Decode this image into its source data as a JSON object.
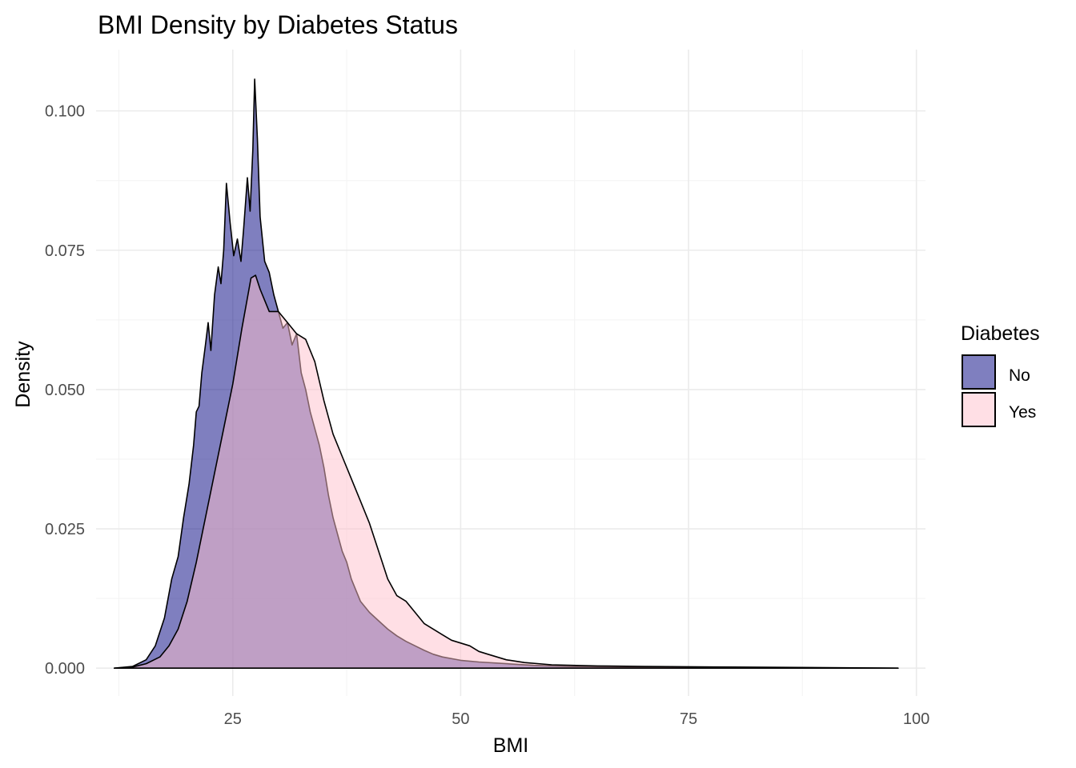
{
  "chart_data": {
    "type": "area",
    "title": "BMI Density by Diabetes Status",
    "xlabel": "BMI",
    "ylabel": "Density",
    "xlim": [
      10,
      101
    ],
    "ylim": [
      -0.005,
      0.111
    ],
    "x_ticks": [
      25,
      50,
      75,
      100
    ],
    "x_tick_labels": [
      "25",
      "50",
      "75",
      "100"
    ],
    "y_ticks": [
      0,
      0.025,
      0.05,
      0.075,
      0.1
    ],
    "y_tick_labels": [
      "0.000",
      "0.025",
      "0.050",
      "0.075",
      "0.100"
    ],
    "grid": true,
    "legend": {
      "title": "Diabetes",
      "placement": "right"
    },
    "series": [
      {
        "name": "No",
        "color": "#00007f",
        "alpha": 0.5,
        "points": [
          [
            12,
            0
          ],
          [
            14,
            0.0003
          ],
          [
            15.5,
            0.0015
          ],
          [
            16.5,
            0.004
          ],
          [
            17.5,
            0.009
          ],
          [
            18.3,
            0.016
          ],
          [
            19,
            0.02
          ],
          [
            19.6,
            0.027
          ],
          [
            20.2,
            0.033
          ],
          [
            20.7,
            0.04
          ],
          [
            21,
            0.046
          ],
          [
            21.3,
            0.047
          ],
          [
            21.6,
            0.053
          ],
          [
            22,
            0.058
          ],
          [
            22.3,
            0.062
          ],
          [
            22.6,
            0.057
          ],
          [
            23,
            0.067
          ],
          [
            23.4,
            0.072
          ],
          [
            23.7,
            0.069
          ],
          [
            24,
            0.075
          ],
          [
            24.3,
            0.087
          ],
          [
            24.7,
            0.08
          ],
          [
            25.1,
            0.074
          ],
          [
            25.5,
            0.077
          ],
          [
            25.9,
            0.073
          ],
          [
            26.2,
            0.079
          ],
          [
            26.6,
            0.088
          ],
          [
            26.9,
            0.082
          ],
          [
            27.2,
            0.093
          ],
          [
            27.4,
            0.1057
          ],
          [
            27.7,
            0.095
          ],
          [
            28,
            0.081
          ],
          [
            28.5,
            0.073
          ],
          [
            29,
            0.071
          ],
          [
            29.5,
            0.067
          ],
          [
            30,
            0.064
          ],
          [
            30.5,
            0.061
          ],
          [
            31,
            0.062
          ],
          [
            31.5,
            0.058
          ],
          [
            32,
            0.06
          ],
          [
            32.5,
            0.053
          ],
          [
            33,
            0.05
          ],
          [
            33.5,
            0.046
          ],
          [
            34,
            0.043
          ],
          [
            34.5,
            0.04
          ],
          [
            35,
            0.036
          ],
          [
            35.5,
            0.031
          ],
          [
            36,
            0.027
          ],
          [
            36.5,
            0.024
          ],
          [
            37,
            0.021
          ],
          [
            37.5,
            0.019
          ],
          [
            38,
            0.016
          ],
          [
            38.5,
            0.014
          ],
          [
            39,
            0.012
          ],
          [
            40,
            0.01
          ],
          [
            41,
            0.0085
          ],
          [
            42,
            0.007
          ],
          [
            43,
            0.0058
          ],
          [
            44,
            0.0048
          ],
          [
            45,
            0.004
          ],
          [
            46,
            0.0032
          ],
          [
            47,
            0.0025
          ],
          [
            48,
            0.002
          ],
          [
            50,
            0.0014
          ],
          [
            52,
            0.0011
          ],
          [
            55,
            0.0008
          ],
          [
            58,
            0.0005
          ],
          [
            62,
            0.0003
          ],
          [
            70,
            0.0002
          ],
          [
            80,
            0.0001
          ],
          [
            98,
            0
          ]
        ]
      },
      {
        "name": "Yes",
        "color": "#ffc0cb",
        "alpha": 0.5,
        "points": [
          [
            12,
            0
          ],
          [
            14,
            0.0002
          ],
          [
            15.5,
            0.0008
          ],
          [
            17,
            0.002
          ],
          [
            18,
            0.004
          ],
          [
            19,
            0.007
          ],
          [
            20,
            0.012
          ],
          [
            21,
            0.019
          ],
          [
            22,
            0.027
          ],
          [
            23,
            0.035
          ],
          [
            24,
            0.043
          ],
          [
            25,
            0.051
          ],
          [
            26,
            0.061
          ],
          [
            27,
            0.07
          ],
          [
            27.5,
            0.0705
          ],
          [
            28,
            0.068
          ],
          [
            28.5,
            0.066
          ],
          [
            29,
            0.064
          ],
          [
            30,
            0.064
          ],
          [
            31,
            0.062
          ],
          [
            32,
            0.06
          ],
          [
            33,
            0.059
          ],
          [
            34,
            0.055
          ],
          [
            35,
            0.048
          ],
          [
            36,
            0.042
          ],
          [
            37,
            0.038
          ],
          [
            38,
            0.034
          ],
          [
            39,
            0.03
          ],
          [
            40,
            0.026
          ],
          [
            41,
            0.021
          ],
          [
            42,
            0.016
          ],
          [
            43,
            0.013
          ],
          [
            44,
            0.012
          ],
          [
            45,
            0.01
          ],
          [
            46,
            0.008
          ],
          [
            47,
            0.007
          ],
          [
            48,
            0.006
          ],
          [
            49,
            0.005
          ],
          [
            50,
            0.0045
          ],
          [
            51,
            0.004
          ],
          [
            52,
            0.003
          ],
          [
            53,
            0.0025
          ],
          [
            55,
            0.0015
          ],
          [
            57,
            0.001
          ],
          [
            60,
            0.0006
          ],
          [
            65,
            0.0004
          ],
          [
            70,
            0.0003
          ],
          [
            80,
            0.0002
          ],
          [
            98,
            0
          ]
        ]
      }
    ]
  }
}
